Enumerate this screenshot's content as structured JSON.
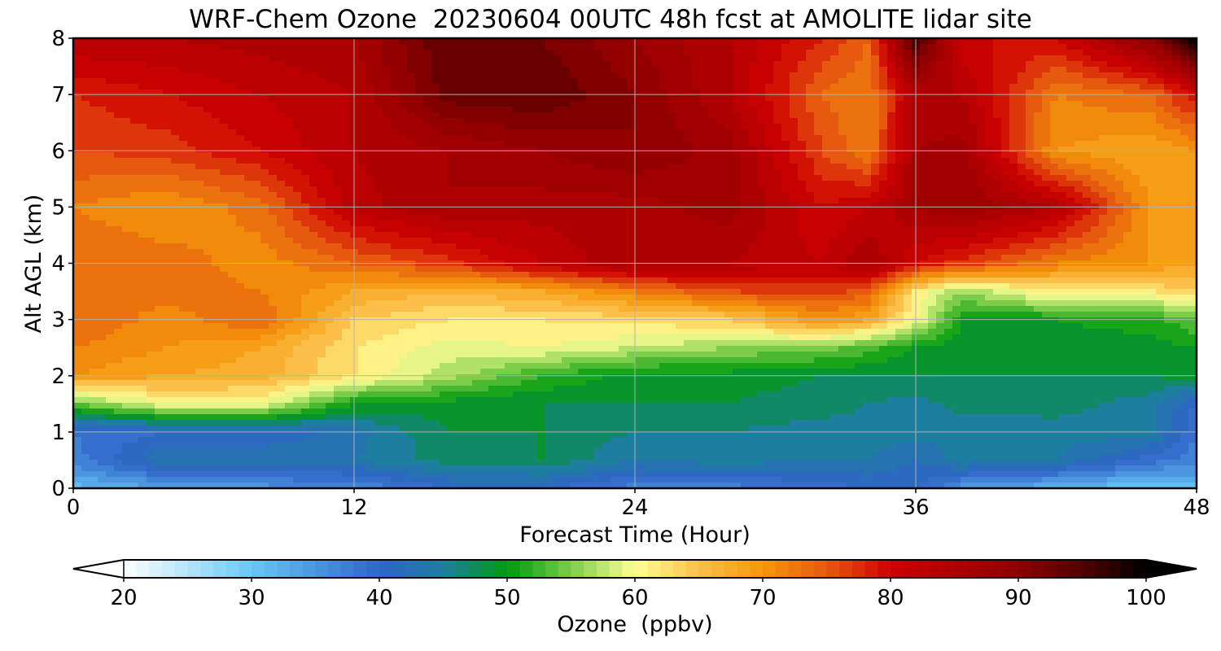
{
  "chart_data": {
    "type": "heatmap",
    "title": "WRF-Chem Ozone  20230604 00UTC 48h fcst at AMOLITE lidar site",
    "xlabel": "Forecast Time (Hour)",
    "ylabel": "Alt AGL (km)",
    "xlim": [
      0,
      48
    ],
    "ylim": [
      0,
      8
    ],
    "xticks": [
      0,
      12,
      24,
      36,
      48
    ],
    "yticks": [
      0,
      1,
      2,
      3,
      4,
      5,
      6,
      7,
      8
    ],
    "grid": true,
    "colorbar": {
      "label": "Ozone  (ppbv)",
      "range": [
        20,
        100
      ],
      "ticks": [
        20,
        30,
        40,
        50,
        60,
        70,
        80,
        90,
        100
      ],
      "extend": "both",
      "colors": [
        {
          "v": 20,
          "c": "#ffffff"
        },
        {
          "v": 30,
          "c": "#67c8f5"
        },
        {
          "v": 40,
          "c": "#2f64c8"
        },
        {
          "v": 45,
          "c": "#1e7ea0"
        },
        {
          "v": 50,
          "c": "#009a0e"
        },
        {
          "v": 55,
          "c": "#7ccd49"
        },
        {
          "v": 60,
          "c": "#ffff96"
        },
        {
          "v": 65,
          "c": "#fcc04a"
        },
        {
          "v": 70,
          "c": "#f5960a"
        },
        {
          "v": 75,
          "c": "#e65a10"
        },
        {
          "v": 80,
          "c": "#cd0000"
        },
        {
          "v": 90,
          "c": "#8c0000"
        },
        {
          "v": 95,
          "c": "#500000"
        },
        {
          "v": 100,
          "c": "#000000"
        }
      ]
    },
    "hours": [
      0,
      4,
      8,
      12,
      16,
      20,
      24,
      28,
      32,
      34,
      36,
      38,
      42,
      46,
      48
    ],
    "altitudes_km": [
      0,
      0.5,
      1,
      1.5,
      2,
      2.5,
      3,
      3.5,
      4,
      5,
      6,
      7,
      8
    ],
    "ozone_ppbv": [
      [
        31,
        34,
        35,
        36,
        40,
        40,
        37,
        37,
        39,
        40,
        40,
        35,
        32,
        30,
        31
      ],
      [
        37,
        44,
        44,
        44,
        47,
        48,
        44,
        45,
        44,
        44,
        42,
        45,
        44,
        39,
        37
      ],
      [
        38,
        40,
        40,
        43,
        48,
        48,
        46,
        46,
        45,
        45,
        45,
        44,
        45,
        45,
        38
      ],
      [
        54,
        60,
        60,
        50,
        49,
        48,
        48,
        48,
        47,
        46,
        45,
        47,
        47,
        45,
        40
      ],
      [
        70,
        68,
        67,
        62,
        57,
        52,
        49,
        49,
        48,
        48,
        48,
        48,
        48,
        48,
        49
      ],
      [
        72,
        70,
        68,
        62,
        59,
        60,
        58,
        56,
        55,
        53,
        50,
        49,
        49,
        49,
        50
      ],
      [
        74,
        71,
        74,
        64,
        62,
        62,
        63,
        64,
        70,
        68,
        60,
        50,
        50,
        51,
        54
      ],
      [
        73,
        73,
        72,
        68,
        66,
        68,
        72,
        76,
        77,
        75,
        62,
        56,
        62,
        62,
        64
      ],
      [
        74,
        73,
        71,
        74,
        77,
        82,
        86,
        84,
        82,
        86,
        80,
        77,
        72,
        70,
        68
      ],
      [
        72,
        70,
        73,
        83,
        86,
        85,
        85,
        87,
        80,
        82,
        86,
        88,
        84,
        70,
        69
      ],
      [
        76,
        77,
        80,
        84,
        86,
        88,
        90,
        87,
        76,
        72,
        86,
        87,
        70,
        68,
        70
      ],
      [
        78,
        80,
        82,
        84,
        93,
        94,
        90,
        84,
        74,
        72,
        84,
        84,
        72,
        74,
        80
      ],
      [
        84,
        84,
        85,
        86,
        94,
        92,
        88,
        84,
        78,
        74,
        96,
        80,
        80,
        90,
        100
      ]
    ]
  }
}
